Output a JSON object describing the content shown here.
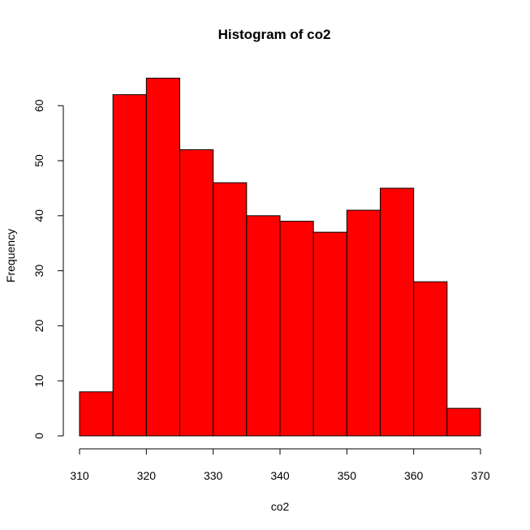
{
  "chart_data": {
    "type": "bar",
    "subtype": "histogram",
    "title": "Histogram of co2",
    "xlabel": "co2",
    "ylabel": "Frequency",
    "bin_edges": [
      310,
      315,
      320,
      325,
      330,
      335,
      340,
      345,
      350,
      355,
      360,
      365,
      370
    ],
    "counts": [
      8,
      62,
      65,
      52,
      46,
      40,
      39,
      37,
      41,
      45,
      28,
      5
    ],
    "xlim": [
      310,
      370
    ],
    "ylim": [
      0,
      65
    ],
    "x_ticks": [
      310,
      320,
      330,
      340,
      350,
      360,
      370
    ],
    "y_ticks": [
      0,
      10,
      20,
      30,
      40,
      50,
      60
    ],
    "bar_color": "#ff0000",
    "grid": false
  }
}
